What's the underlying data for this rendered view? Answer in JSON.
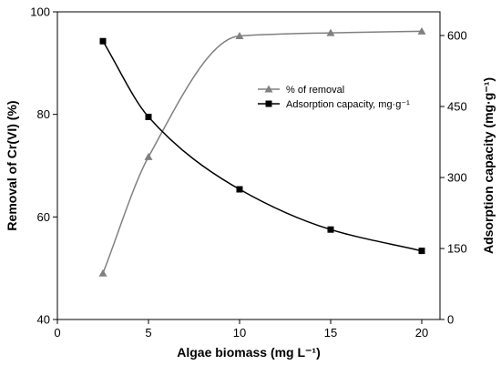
{
  "chart_data": {
    "type": "line",
    "x": [
      2.5,
      5,
      10,
      15,
      20
    ],
    "xlabel": "Algae biomass (mg L⁻¹)",
    "xlim": [
      0,
      21
    ],
    "xticks": [
      0,
      5,
      10,
      15,
      20
    ],
    "y_left": {
      "label": "Removal of Cr(VI) (%)",
      "lim": [
        40,
        100
      ],
      "ticks": [
        40,
        60,
        80,
        100
      ]
    },
    "y_right": {
      "label": "Adsorption capacity (mg·g⁻¹)",
      "lim": [
        0,
        650
      ],
      "ticks": [
        0,
        150,
        300,
        450,
        600
      ]
    },
    "series": [
      {
        "name": "% of removal",
        "axis": "left",
        "marker": "triangle",
        "color": "#808080",
        "values": [
          49.0,
          71.7,
          95.3,
          95.9,
          96.2
        ]
      },
      {
        "name": "Adsorption capacity, mg·g⁻¹",
        "axis": "right",
        "marker": "square",
        "color": "#000000",
        "values": [
          588,
          428,
          275,
          190,
          145
        ]
      }
    ],
    "legend_position": "upper-right",
    "grid": false
  }
}
